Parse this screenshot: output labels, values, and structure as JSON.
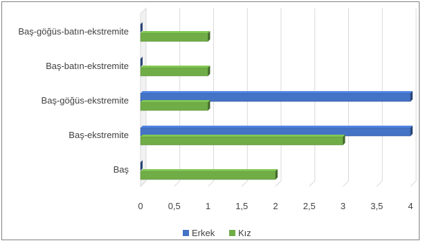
{
  "chart_data": {
    "type": "bar",
    "orientation": "horizontal",
    "style": "3d-clustered",
    "categories": [
      "Baş",
      "Baş-ekstremite",
      "Baş-göğüs-ekstremite",
      "Baş-batın-ekstremite",
      "Baş-göğüs-batın-ekstremite"
    ],
    "series": [
      {
        "name": "Erkek",
        "values": [
          0,
          4,
          4,
          0,
          0
        ],
        "color": "#4472c4"
      },
      {
        "name": "Kız",
        "values": [
          2,
          3,
          1,
          1,
          1
        ],
        "color": "#70ad47"
      }
    ],
    "xlim": [
      0,
      4
    ],
    "x_ticks": [
      "0",
      "0,5",
      "1",
      "1,5",
      "2",
      "2,5",
      "3",
      "3,5",
      "4"
    ],
    "grid": true,
    "legend_position": "bottom"
  }
}
